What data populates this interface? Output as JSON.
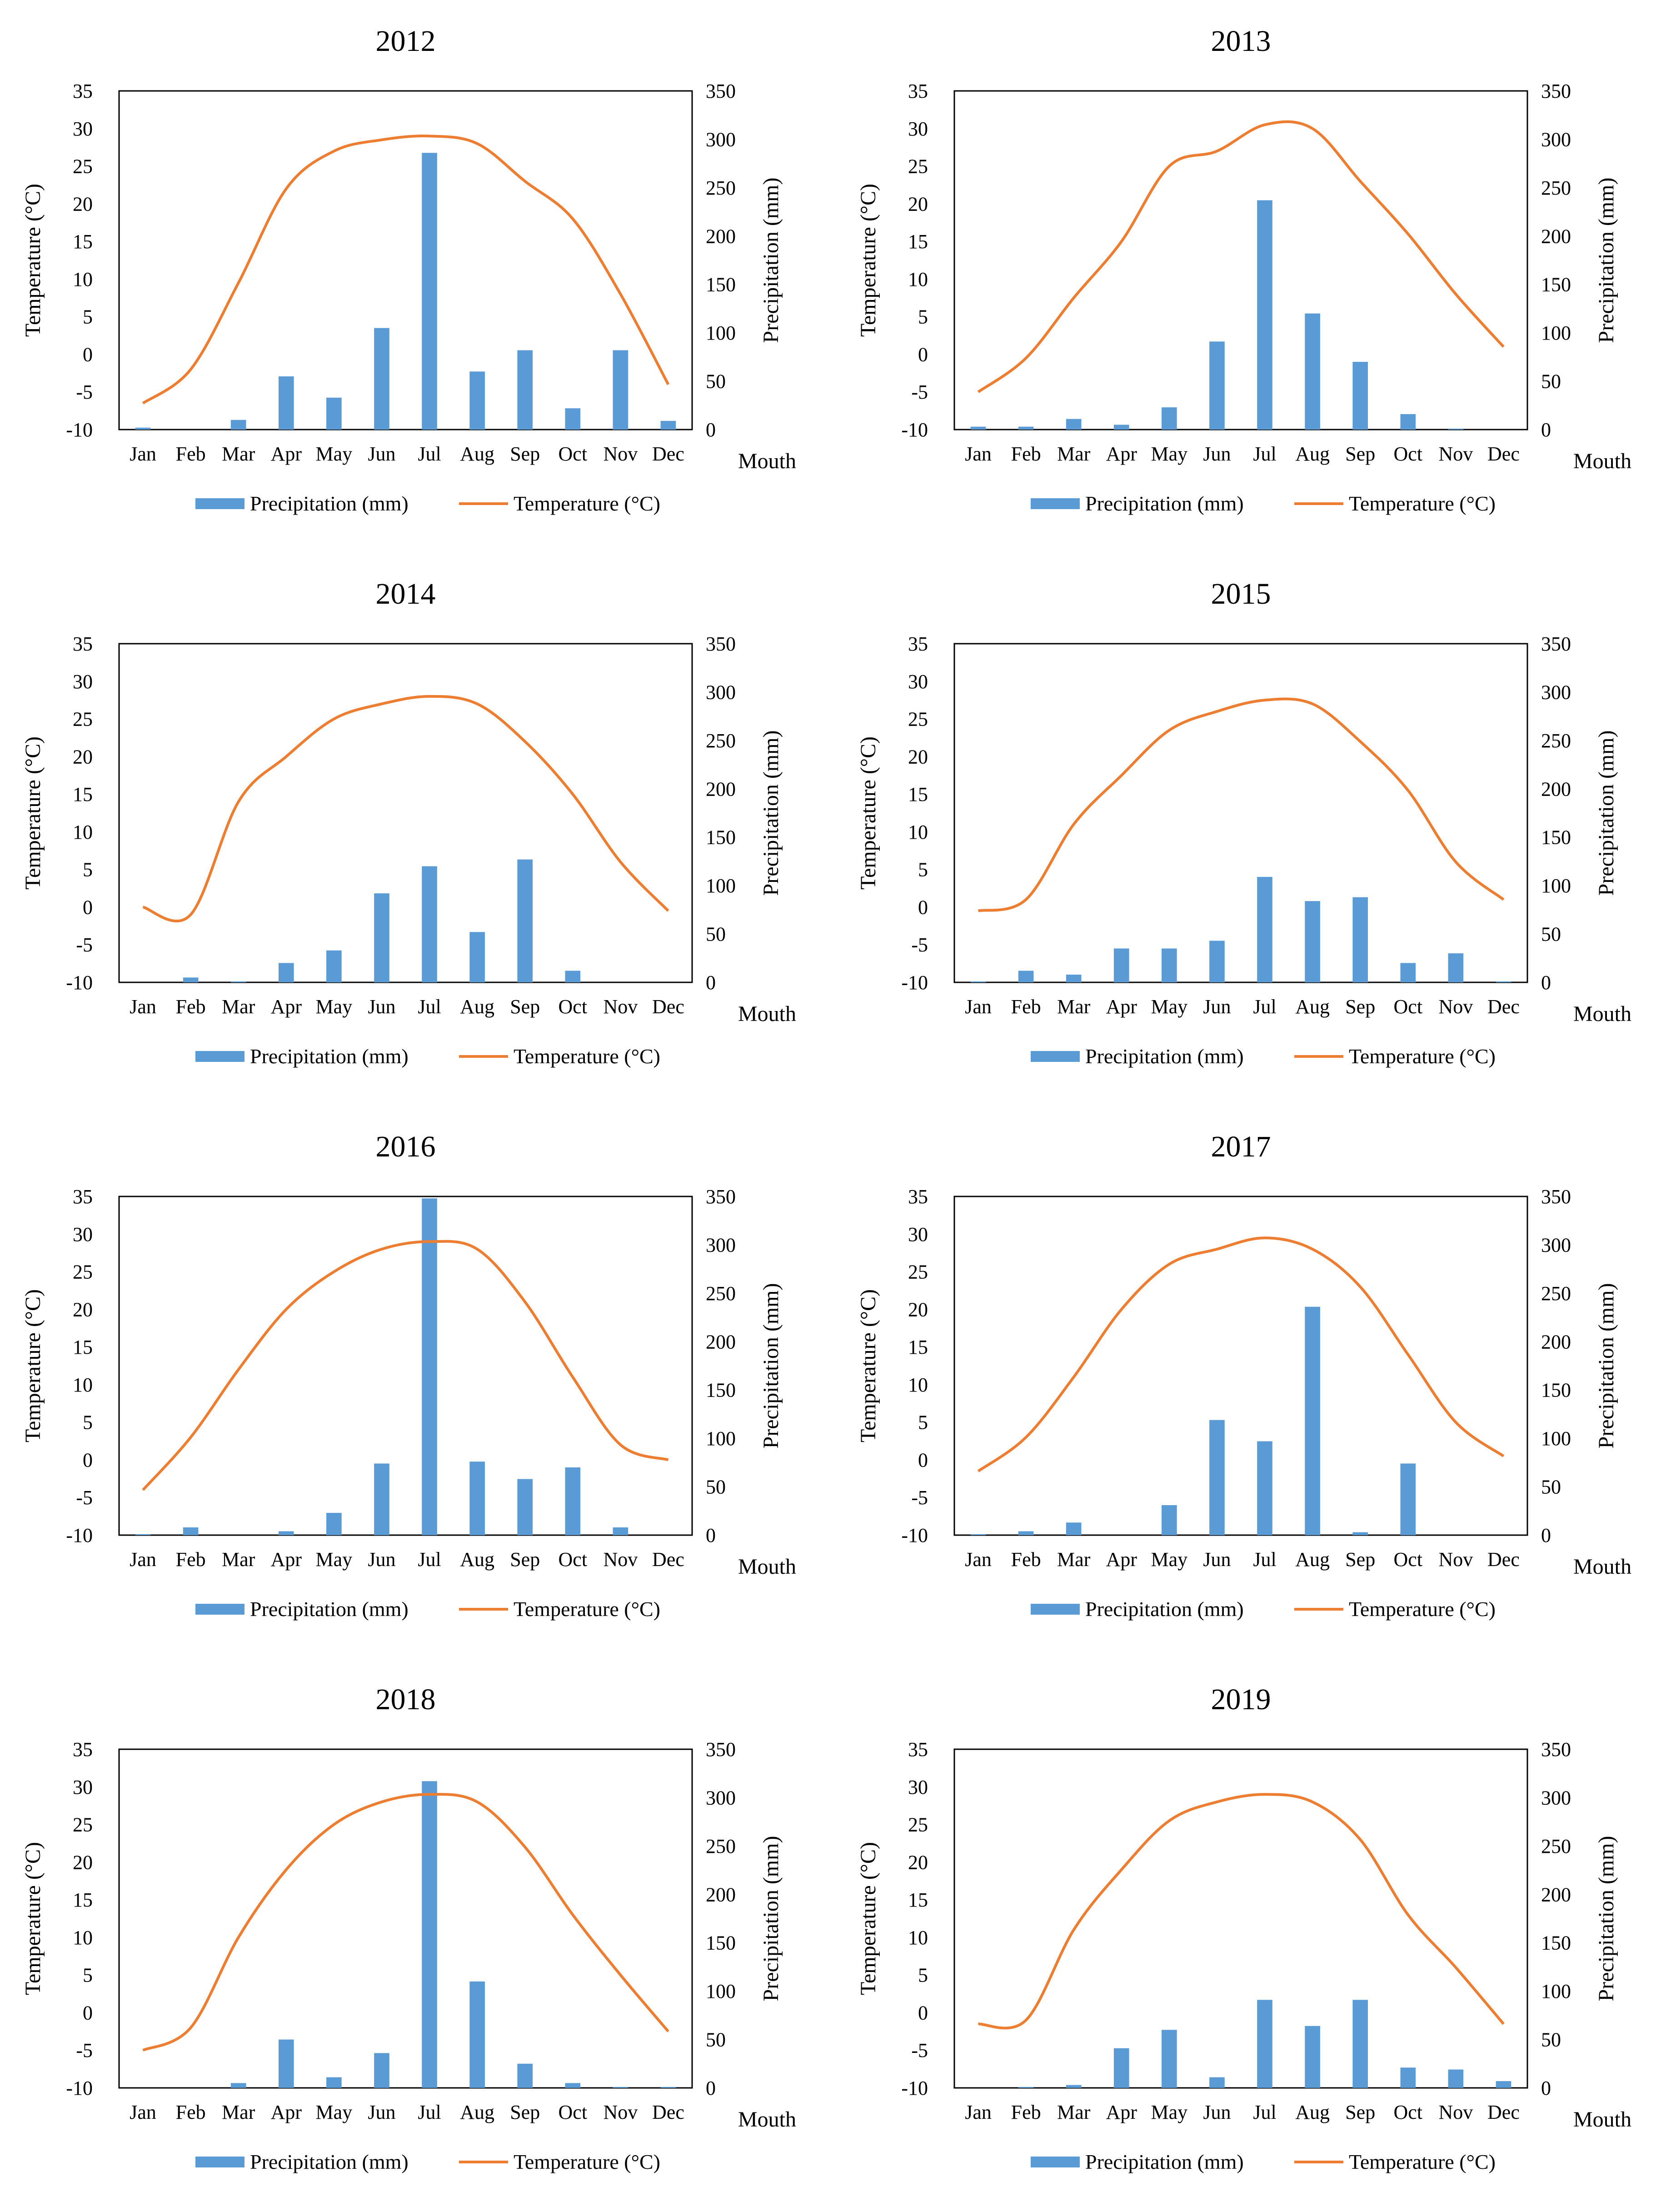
{
  "figure": {
    "panel_count": 8
  },
  "colors": {
    "precip_bar": "#5B9BD5",
    "temp_line": "#ED7D31",
    "axis": "#000000"
  },
  "chart_data": [
    {
      "type": "bar+line",
      "title": "2012",
      "categories": [
        "Jan",
        "Feb",
        "Mar",
        "Apr",
        "May",
        "Jun",
        "Jul",
        "Aug",
        "Sep",
        "Oct",
        "Nov",
        "Dec"
      ],
      "series": [
        {
          "name": "Precipitation (mm)",
          "axis": "right",
          "kind": "bar",
          "values": [
            2,
            0,
            10,
            55,
            33,
            105,
            286,
            60,
            82,
            22,
            82,
            9
          ]
        },
        {
          "name": "Temperature (°C)",
          "axis": "left",
          "kind": "line",
          "values": [
            -6.5,
            -2,
            9.5,
            22,
            27,
            28.5,
            29,
            28,
            23,
            18,
            8,
            -4
          ]
        }
      ],
      "y_left": {
        "label": "Temperature (°C)",
        "range": [
          -10,
          35
        ],
        "ticks": [
          "-10",
          "-5",
          "0",
          "5",
          "10",
          "15",
          "20",
          "25",
          "30",
          "35"
        ]
      },
      "y_right": {
        "label": "Precipitation (mm)",
        "range": [
          0,
          350
        ],
        "ticks": [
          "0",
          "50",
          "100",
          "150",
          "200",
          "250",
          "300",
          "350"
        ]
      },
      "xlabel": "Mouth",
      "legend": "bottom"
    },
    {
      "type": "bar+line",
      "title": "2013",
      "categories": [
        "Jan",
        "Feb",
        "Mar",
        "Apr",
        "May",
        "Jun",
        "Jul",
        "Aug",
        "Sep",
        "Oct",
        "Nov",
        "Dec"
      ],
      "series": [
        {
          "name": "Precipitation (mm)",
          "axis": "right",
          "kind": "bar",
          "values": [
            3,
            3,
            11,
            5,
            23,
            91,
            237,
            120,
            70,
            16,
            1,
            0
          ]
        },
        {
          "name": "Temperature (°C)",
          "axis": "left",
          "kind": "line",
          "values": [
            -5,
            -0.5,
            7.5,
            15,
            25,
            27,
            30.5,
            30,
            23,
            16,
            8,
            1
          ]
        }
      ],
      "y_left": {
        "label": "Temperature (°C)",
        "range": [
          -10,
          35
        ],
        "ticks": [
          "-10",
          "-5",
          "0",
          "5",
          "10",
          "15",
          "20",
          "25",
          "30",
          "35"
        ]
      },
      "y_right": {
        "label": "Precipitation (mm)",
        "range": [
          0,
          350
        ],
        "ticks": [
          "0",
          "50",
          "100",
          "150",
          "200",
          "250",
          "300",
          "350"
        ]
      },
      "xlabel": "Mouth",
      "legend": "bottom"
    },
    {
      "type": "bar+line",
      "title": "2014",
      "categories": [
        "Jan",
        "Feb",
        "Mar",
        "Apr",
        "May",
        "Jun",
        "Jul",
        "Aug",
        "Sep",
        "Oct",
        "Nov",
        "Dec"
      ],
      "series": [
        {
          "name": "Precipitation (mm)",
          "axis": "right",
          "kind": "bar",
          "values": [
            0,
            5,
            1,
            20,
            33,
            92,
            120,
            52,
            127,
            12,
            0,
            0
          ]
        },
        {
          "name": "Temperature (°C)",
          "axis": "left",
          "kind": "line",
          "values": [
            0,
            -1,
            14,
            20,
            25,
            27,
            28,
            27,
            22,
            15,
            6,
            -0.5
          ]
        }
      ],
      "y_left": {
        "label": "Temperature (°C)",
        "range": [
          -10,
          35
        ],
        "ticks": [
          "-10",
          "-5",
          "0",
          "5",
          "10",
          "15",
          "20",
          "25",
          "30",
          "35"
        ]
      },
      "y_right": {
        "label": "Precipitation (mm)",
        "range": [
          0,
          350
        ],
        "ticks": [
          "0",
          "50",
          "100",
          "150",
          "200",
          "250",
          "300",
          "350"
        ]
      },
      "xlabel": "Mouth",
      "legend": "bottom"
    },
    {
      "type": "bar+line",
      "title": "2015",
      "categories": [
        "Jan",
        "Feb",
        "Mar",
        "Apr",
        "May",
        "Jun",
        "Jul",
        "Aug",
        "Sep",
        "Oct",
        "Nov",
        "Dec"
      ],
      "series": [
        {
          "name": "Precipitation (mm)",
          "axis": "right",
          "kind": "bar",
          "values": [
            1,
            12,
            8,
            35,
            35,
            43,
            109,
            84,
            88,
            20,
            30,
            1
          ]
        },
        {
          "name": "Temperature (°C)",
          "axis": "left",
          "kind": "line",
          "values": [
            -0.5,
            1,
            11,
            17.5,
            23.5,
            26,
            27.5,
            27,
            22,
            15.5,
            6,
            1
          ]
        }
      ],
      "y_left": {
        "label": "Temperature (°C)",
        "range": [
          -10,
          35
        ],
        "ticks": [
          "-10",
          "-5",
          "0",
          "5",
          "10",
          "15",
          "20",
          "25",
          "30",
          "35"
        ]
      },
      "y_right": {
        "label": "Precipitation (mm)",
        "range": [
          0,
          350
        ],
        "ticks": [
          "0",
          "50",
          "100",
          "150",
          "200",
          "250",
          "300",
          "350"
        ]
      },
      "xlabel": "Mouth",
      "legend": "bottom"
    },
    {
      "type": "bar+line",
      "title": "2016",
      "categories": [
        "Jan",
        "Feb",
        "Mar",
        "Apr",
        "May",
        "Jun",
        "Jul",
        "Aug",
        "Sep",
        "Oct",
        "Nov",
        "Dec"
      ],
      "series": [
        {
          "name": "Precipitation (mm)",
          "axis": "right",
          "kind": "bar",
          "values": [
            1,
            8,
            0,
            4,
            23,
            74,
            348,
            76,
            58,
            70,
            8,
            0
          ]
        },
        {
          "name": "Temperature (°C)",
          "axis": "left",
          "kind": "line",
          "values": [
            -4,
            3,
            12,
            20,
            25,
            28,
            29,
            28,
            21,
            11,
            2,
            0
          ]
        }
      ],
      "y_left": {
        "label": "Temperature (°C)",
        "range": [
          -10,
          35
        ],
        "ticks": [
          "-10",
          "-5",
          "0",
          "5",
          "10",
          "15",
          "20",
          "25",
          "30",
          "35"
        ]
      },
      "y_right": {
        "label": "Precipitation (mm)",
        "range": [
          0,
          350
        ],
        "ticks": [
          "0",
          "50",
          "100",
          "150",
          "200",
          "250",
          "300",
          "350"
        ]
      },
      "xlabel": "Mouth",
      "legend": "bottom"
    },
    {
      "type": "bar+line",
      "title": "2017",
      "categories": [
        "Jan",
        "Feb",
        "Mar",
        "Apr",
        "May",
        "Jun",
        "Jul",
        "Aug",
        "Sep",
        "Oct",
        "Nov",
        "Dec"
      ],
      "series": [
        {
          "name": "Precipitation (mm)",
          "axis": "right",
          "kind": "bar",
          "values": [
            1,
            4,
            13,
            0,
            31,
            119,
            97,
            236,
            3,
            74,
            0,
            0
          ]
        },
        {
          "name": "Temperature (°C)",
          "axis": "left",
          "kind": "line",
          "values": [
            -1.5,
            3,
            11,
            20,
            26,
            28,
            29.5,
            28,
            23,
            14,
            5,
            0.5
          ]
        }
      ],
      "y_left": {
        "label": "Temperature (°C)",
        "range": [
          -10,
          35
        ],
        "ticks": [
          "-10",
          "-5",
          "0",
          "5",
          "10",
          "15",
          "20",
          "25",
          "30",
          "35"
        ]
      },
      "y_right": {
        "label": "Precipitation (mm)",
        "range": [
          0,
          350
        ],
        "ticks": [
          "0",
          "50",
          "100",
          "150",
          "200",
          "250",
          "300",
          "350"
        ]
      },
      "xlabel": "Mouth",
      "legend": "bottom"
    },
    {
      "type": "bar+line",
      "title": "2018",
      "categories": [
        "Jan",
        "Feb",
        "Mar",
        "Apr",
        "May",
        "Jun",
        "Jul",
        "Aug",
        "Sep",
        "Oct",
        "Nov",
        "Dec"
      ],
      "series": [
        {
          "name": "Precipitation (mm)",
          "axis": "right",
          "kind": "bar",
          "values": [
            0,
            0,
            5,
            50,
            11,
            36,
            317,
            110,
            25,
            5,
            1,
            1
          ]
        },
        {
          "name": "Temperature (°C)",
          "axis": "left",
          "kind": "line",
          "values": [
            -5,
            -2,
            10,
            19,
            25,
            28,
            29,
            28,
            22,
            13,
            5,
            -2.5
          ]
        }
      ],
      "y_left": {
        "label": "Temperature (°C)",
        "range": [
          -10,
          35
        ],
        "ticks": [
          "-10",
          "-5",
          "0",
          "5",
          "10",
          "15",
          "20",
          "25",
          "30",
          "35"
        ]
      },
      "y_right": {
        "label": "Precipitation (mm)",
        "range": [
          0,
          350
        ],
        "ticks": [
          "0",
          "50",
          "100",
          "150",
          "200",
          "250",
          "300",
          "350"
        ]
      },
      "xlabel": "Mouth",
      "legend": "bottom"
    },
    {
      "type": "bar+line",
      "title": "2019",
      "categories": [
        "Jan",
        "Feb",
        "Mar",
        "Apr",
        "May",
        "Jun",
        "Jul",
        "Aug",
        "Sep",
        "Oct",
        "Nov",
        "Dec"
      ],
      "series": [
        {
          "name": "Precipitation (mm)",
          "axis": "right",
          "kind": "bar",
          "values": [
            0,
            1,
            3,
            41,
            60,
            11,
            91,
            64,
            91,
            21,
            19,
            7
          ]
        },
        {
          "name": "Temperature (°C)",
          "axis": "left",
          "kind": "line",
          "values": [
            -1.5,
            -1,
            11,
            19,
            25.5,
            28,
            29,
            28,
            23,
            13,
            6,
            -1.5
          ]
        }
      ],
      "y_left": {
        "label": "Temperature (°C)",
        "range": [
          -10,
          35
        ],
        "ticks": [
          "-10",
          "-5",
          "0",
          "5",
          "10",
          "15",
          "20",
          "25",
          "30",
          "35"
        ]
      },
      "y_right": {
        "label": "Precipitation (mm)",
        "range": [
          0,
          350
        ],
        "ticks": [
          "0",
          "50",
          "100",
          "150",
          "200",
          "250",
          "300",
          "350"
        ]
      },
      "xlabel": "Mouth",
      "legend": "bottom"
    }
  ]
}
